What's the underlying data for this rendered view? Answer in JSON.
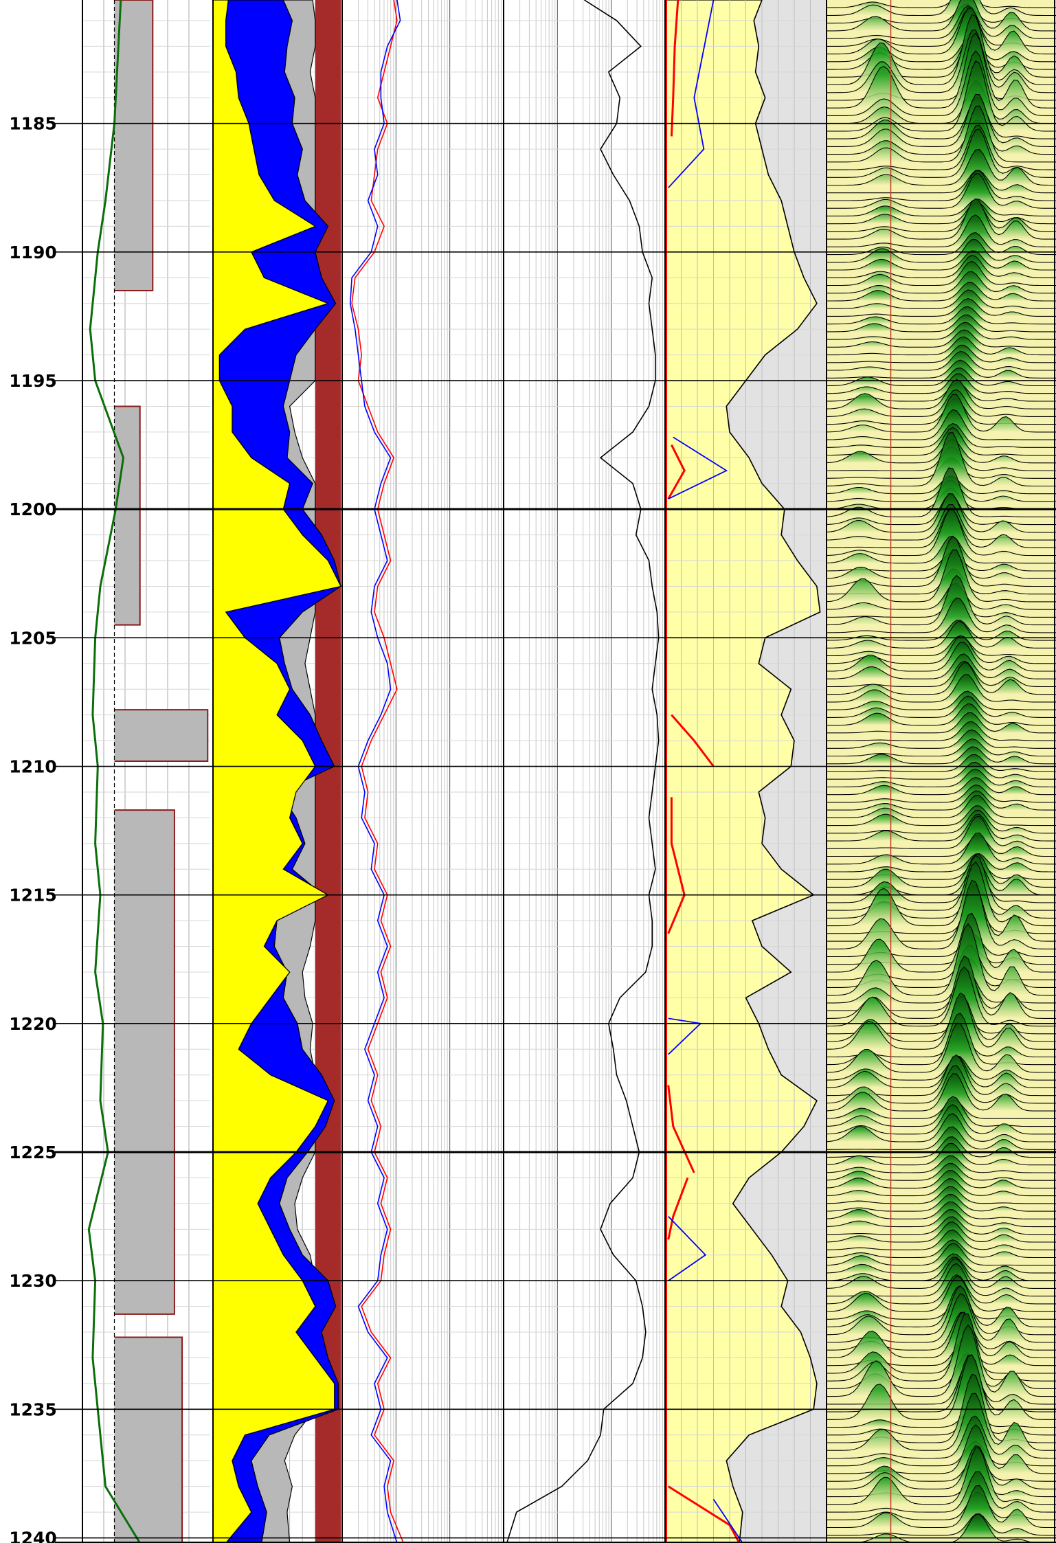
{
  "chart_data": {
    "type": "line",
    "title": "",
    "depth_axis": {
      "min": 1180.2,
      "max": 1240.2,
      "major_step": 5,
      "minor_step": 1,
      "tick_labels": [
        "1185",
        "1190",
        "1195",
        "1200",
        "1205",
        "1210",
        "1215",
        "1220",
        "1225",
        "1230",
        "1235",
        "1240"
      ]
    },
    "grid": true,
    "colors": {
      "yellow_fill": "#ffff00",
      "blue_fill": "#0000ff",
      "gray_fill": "#b8b8b8",
      "brown_fill": "#a52a2a",
      "red_curve": "#ff0000",
      "blue_curve": "#0000ff",
      "green_curve": "#0b6e0b",
      "dark_red_curve": "#8b1a1a",
      "pale_yellow_fill": "#ffffa8",
      "light_gray_fill": "#e2e2e2",
      "spectrum_dark": "#0a4d0a",
      "spectrum_green": "#1f9f1f",
      "spectrum_pale": "#f6f3b0"
    },
    "tracks": [
      {
        "name": "track-1",
        "curves": [
          {
            "kind": "green-line",
            "depth": [
              1180.2,
              1185,
              1188,
              1190,
              1193,
              1195,
              1198,
              1200,
              1203,
              1205,
              1208,
              1210,
              1213,
              1215,
              1218,
              1220,
              1223,
              1225,
              1228,
              1230,
              1233,
              1235,
              1238,
              1240.2
            ],
            "value": [
              0.3,
              0.25,
              0.18,
              0.12,
              0.06,
              0.1,
              0.32,
              0.26,
              0.14,
              0.1,
              0.08,
              0.12,
              0.1,
              0.14,
              0.1,
              0.16,
              0.14,
              0.2,
              0.05,
              0.1,
              0.08,
              0.12,
              0.18,
              0.45
            ]
          },
          {
            "kind": "red-step-fill",
            "blocks": [
              {
                "top": 1180.2,
                "bottom": 1191.5,
                "value": 0.55
              },
              {
                "top": 1196.0,
                "bottom": 1204.5,
                "value": 0.45
              },
              {
                "top": 1207.8,
                "bottom": 1209.8,
                "value": 0.98
              },
              {
                "top": 1211.7,
                "bottom": 1231.3,
                "value": 0.72
              },
              {
                "top": 1232.2,
                "bottom": 1240.2,
                "value": 0.78
              }
            ]
          }
        ]
      },
      {
        "name": "track-2",
        "depth": [
          1180.2,
          1181,
          1182,
          1183,
          1184,
          1185,
          1186,
          1187,
          1188,
          1189,
          1190,
          1191,
          1192,
          1193,
          1194,
          1195,
          1196,
          1197,
          1198,
          1199,
          1200,
          1201,
          1202,
          1203,
          1204,
          1205,
          1206,
          1207,
          1208,
          1209,
          1210,
          1211,
          1212,
          1213,
          1214,
          1215,
          1216,
          1217,
          1218,
          1219,
          1220,
          1221,
          1222,
          1223,
          1224,
          1225,
          1226,
          1227,
          1228,
          1229,
          1230,
          1231,
          1232,
          1233,
          1234,
          1235,
          1236,
          1237,
          1238,
          1239,
          1240.2
        ],
        "yellow_edge": [
          0.12,
          0.1,
          0.1,
          0.18,
          0.2,
          0.28,
          0.32,
          0.36,
          0.48,
          0.8,
          0.3,
          0.4,
          0.9,
          0.25,
          0.05,
          0.05,
          0.15,
          0.15,
          0.3,
          0.6,
          0.55,
          0.7,
          0.9,
          1.0,
          0.1,
          0.25,
          0.5,
          0.6,
          0.5,
          0.7,
          0.8,
          0.65,
          0.6,
          0.7,
          0.55,
          0.9,
          0.5,
          0.4,
          0.6,
          0.45,
          0.3,
          0.2,
          0.45,
          0.9,
          0.8,
          0.65,
          0.45,
          0.35,
          0.45,
          0.55,
          0.7,
          0.8,
          0.65,
          0.8,
          0.95,
          0.95,
          0.25,
          0.15,
          0.2,
          0.3,
          0.1
        ],
        "blue_edge": [
          0.55,
          0.62,
          0.58,
          0.56,
          0.64,
          0.62,
          0.7,
          0.66,
          0.72,
          0.9,
          0.8,
          0.85,
          0.96,
          0.8,
          0.65,
          0.6,
          0.55,
          0.6,
          0.58,
          0.78,
          0.7,
          0.85,
          0.95,
          1.0,
          0.7,
          0.52,
          0.56,
          0.62,
          0.76,
          0.85,
          0.95,
          0.52,
          0.65,
          0.72,
          0.62,
          0.86,
          0.5,
          0.48,
          0.58,
          0.55,
          0.66,
          0.7,
          0.85,
          0.95,
          0.88,
          0.74,
          0.58,
          0.52,
          0.6,
          0.7,
          0.9,
          0.96,
          0.85,
          0.9,
          0.98,
          0.98,
          0.44,
          0.3,
          0.35,
          0.42,
          0.38
        ],
        "gray_edge": [
          0.78,
          0.8,
          0.82,
          0.76,
          0.8,
          0.82,
          0.86,
          0.84,
          0.88,
          0.92,
          0.9,
          0.92,
          0.98,
          0.92,
          0.82,
          0.8,
          0.6,
          0.64,
          0.7,
          0.86,
          0.88,
          0.9,
          0.98,
          1.0,
          0.82,
          0.76,
          0.72,
          0.76,
          0.86,
          0.9,
          0.98,
          0.8,
          0.88,
          0.82,
          0.8,
          0.92,
          0.86,
          0.76,
          0.7,
          0.72,
          0.78,
          0.76,
          0.86,
          0.96,
          0.9,
          0.82,
          0.7,
          0.64,
          0.66,
          0.76,
          0.92,
          0.98,
          0.9,
          0.94,
          0.99,
          0.99,
          0.64,
          0.56,
          0.62,
          0.58,
          0.6
        ],
        "brown_edge": 0.8
      },
      {
        "name": "track-3",
        "depth": [
          1180.2,
          1181,
          1182,
          1183,
          1184,
          1185,
          1186,
          1187,
          1188,
          1189,
          1190,
          1191,
          1192,
          1193,
          1194,
          1195,
          1196,
          1197,
          1198,
          1199,
          1200,
          1201,
          1202,
          1203,
          1204,
          1205,
          1206,
          1207,
          1208,
          1209,
          1210,
          1211,
          1212,
          1213,
          1214,
          1215,
          1216,
          1217,
          1218,
          1219,
          1220,
          1221,
          1222,
          1223,
          1224,
          1225,
          1226,
          1227,
          1228,
          1229,
          1230,
          1231,
          1232,
          1233,
          1234,
          1235,
          1236,
          1237,
          1238,
          1239,
          1240.2
        ],
        "red_curve": [
          0.32,
          0.34,
          0.3,
          0.26,
          0.22,
          0.28,
          0.22,
          0.2,
          0.18,
          0.26,
          0.2,
          0.08,
          0.06,
          0.1,
          0.12,
          0.1,
          0.16,
          0.22,
          0.32,
          0.26,
          0.22,
          0.26,
          0.3,
          0.22,
          0.2,
          0.26,
          0.3,
          0.34,
          0.26,
          0.18,
          0.12,
          0.16,
          0.14,
          0.22,
          0.2,
          0.28,
          0.24,
          0.3,
          0.24,
          0.28,
          0.22,
          0.16,
          0.22,
          0.18,
          0.24,
          0.2,
          0.28,
          0.24,
          0.3,
          0.26,
          0.24,
          0.12,
          0.18,
          0.3,
          0.22,
          0.26,
          0.2,
          0.32,
          0.28,
          0.3,
          0.38
        ],
        "blue_curve": [
          0.34,
          0.36,
          0.28,
          0.24,
          0.24,
          0.26,
          0.2,
          0.22,
          0.16,
          0.22,
          0.18,
          0.06,
          0.05,
          0.08,
          0.1,
          0.12,
          0.14,
          0.2,
          0.3,
          0.24,
          0.2,
          0.24,
          0.28,
          0.2,
          0.18,
          0.22,
          0.28,
          0.3,
          0.24,
          0.16,
          0.1,
          0.14,
          0.12,
          0.2,
          0.18,
          0.26,
          0.22,
          0.28,
          0.22,
          0.26,
          0.2,
          0.14,
          0.2,
          0.16,
          0.22,
          0.18,
          0.26,
          0.22,
          0.28,
          0.24,
          0.22,
          0.1,
          0.16,
          0.28,
          0.2,
          0.24,
          0.18,
          0.3,
          0.26,
          0.28,
          0.34
        ],
        "scale": "log"
      },
      {
        "name": "track-4",
        "depth": [
          1180.2,
          1181,
          1182,
          1183,
          1184,
          1185,
          1186,
          1187,
          1188,
          1189,
          1190,
          1191,
          1192,
          1193,
          1194,
          1195,
          1196,
          1197,
          1198,
          1199,
          1200,
          1201,
          1202,
          1203,
          1204,
          1205,
          1206,
          1207,
          1208,
          1209,
          1210,
          1211,
          1212,
          1213,
          1214,
          1215,
          1216,
          1217,
          1218,
          1219,
          1220,
          1221,
          1222,
          1223,
          1224,
          1225,
          1226,
          1227,
          1228,
          1229,
          1230,
          1231,
          1232,
          1233,
          1234,
          1235,
          1236,
          1237,
          1238,
          1239,
          1240.2
        ],
        "value": [
          0.5,
          0.7,
          0.85,
          0.65,
          0.72,
          0.7,
          0.6,
          0.68,
          0.78,
          0.84,
          0.86,
          0.92,
          0.9,
          0.92,
          0.94,
          0.94,
          0.9,
          0.8,
          0.6,
          0.8,
          0.85,
          0.82,
          0.9,
          0.92,
          0.95,
          0.96,
          0.94,
          0.92,
          0.95,
          0.96,
          0.94,
          0.92,
          0.9,
          0.92,
          0.94,
          0.9,
          0.92,
          0.92,
          0.88,
          0.72,
          0.65,
          0.68,
          0.7,
          0.76,
          0.8,
          0.84,
          0.8,
          0.66,
          0.6,
          0.68,
          0.82,
          0.86,
          0.88,
          0.86,
          0.8,
          0.62,
          0.6,
          0.52,
          0.36,
          0.08,
          0.02
        ],
        "scale": "log"
      },
      {
        "name": "track-5",
        "depth": [
          1180.2,
          1181,
          1182,
          1183,
          1184,
          1185,
          1186,
          1187,
          1188,
          1189,
          1190,
          1191,
          1192,
          1193,
          1194,
          1195,
          1196,
          1197,
          1198,
          1199,
          1200,
          1201,
          1202,
          1203,
          1204,
          1205,
          1206,
          1207,
          1208,
          1209,
          1210,
          1211,
          1212,
          1213,
          1214,
          1215,
          1216,
          1217,
          1218,
          1219,
          1220,
          1221,
          1222,
          1223,
          1224,
          1225,
          1226,
          1227,
          1228,
          1229,
          1230,
          1231,
          1232,
          1233,
          1234,
          1235,
          1236,
          1237,
          1238,
          1239,
          1240.2
        ],
        "yellow_edge": [
          0.6,
          0.55,
          0.58,
          0.56,
          0.62,
          0.56,
          0.6,
          0.64,
          0.72,
          0.76,
          0.8,
          0.86,
          0.94,
          0.82,
          0.62,
          0.5,
          0.38,
          0.4,
          0.52,
          0.6,
          0.74,
          0.72,
          0.82,
          0.94,
          0.96,
          0.62,
          0.58,
          0.78,
          0.72,
          0.8,
          0.78,
          0.58,
          0.62,
          0.6,
          0.72,
          0.92,
          0.54,
          0.6,
          0.78,
          0.5,
          0.58,
          0.64,
          0.72,
          0.94,
          0.86,
          0.72,
          0.52,
          0.42,
          0.54,
          0.66,
          0.76,
          0.72,
          0.84,
          0.9,
          0.94,
          0.92,
          0.52,
          0.38,
          0.42,
          0.48,
          0.46
        ],
        "red_segments": [
          {
            "depth": [
              1180.2,
              1182,
              1184,
              1185.5
            ],
            "value": [
              0.08,
              0.06,
              0.05,
              0.04
            ]
          },
          {
            "depth": [
              1197.5,
              1198.5,
              1199.6
            ],
            "value": [
              0.04,
              0.12,
              0.02
            ]
          },
          {
            "depth": [
              1208.0,
              1209.0,
              1210.0
            ],
            "value": [
              0.04,
              0.18,
              0.3
            ]
          },
          {
            "depth": [
              1211.2,
              1213.0,
              1215.0,
              1216.5
            ],
            "value": [
              0.04,
              0.04,
              0.12,
              0.02
            ]
          },
          {
            "depth": [
              1222.4,
              1224.0,
              1225.8
            ],
            "value": [
              0.02,
              0.05,
              0.18
            ]
          },
          {
            "depth": [
              1226.0,
              1227.5,
              1228.4
            ],
            "value": [
              0.14,
              0.05,
              0.02
            ]
          },
          {
            "depth": [
              1238.0,
              1239.5,
              1240.2
            ],
            "value": [
              0.02,
              0.4,
              0.46
            ]
          }
        ],
        "blue_segments": [
          {
            "depth": [
              1180.2,
              1184.0,
              1186.0,
              1187.5
            ],
            "value": [
              0.3,
              0.18,
              0.24,
              0.02
            ]
          },
          {
            "depth": [
              1197.2,
              1198.5,
              1199.6
            ],
            "value": [
              0.05,
              0.38,
              0.02
            ]
          },
          {
            "depth": [
              1219.8,
              1220.0,
              1221.2
            ],
            "value": [
              0.02,
              0.22,
              0.02
            ]
          },
          {
            "depth": [
              1227.5,
              1229.0,
              1230.0
            ],
            "value": [
              0.02,
              0.25,
              0.02
            ]
          },
          {
            "depth": [
              1238.5,
              1240.2
            ],
            "value": [
              0.3,
              0.48
            ]
          }
        ]
      },
      {
        "name": "track-6",
        "type": "heatmap",
        "waveform_peak_positions": [
          0.6,
          0.8
        ],
        "reference_line_position": 0.5
      }
    ]
  }
}
